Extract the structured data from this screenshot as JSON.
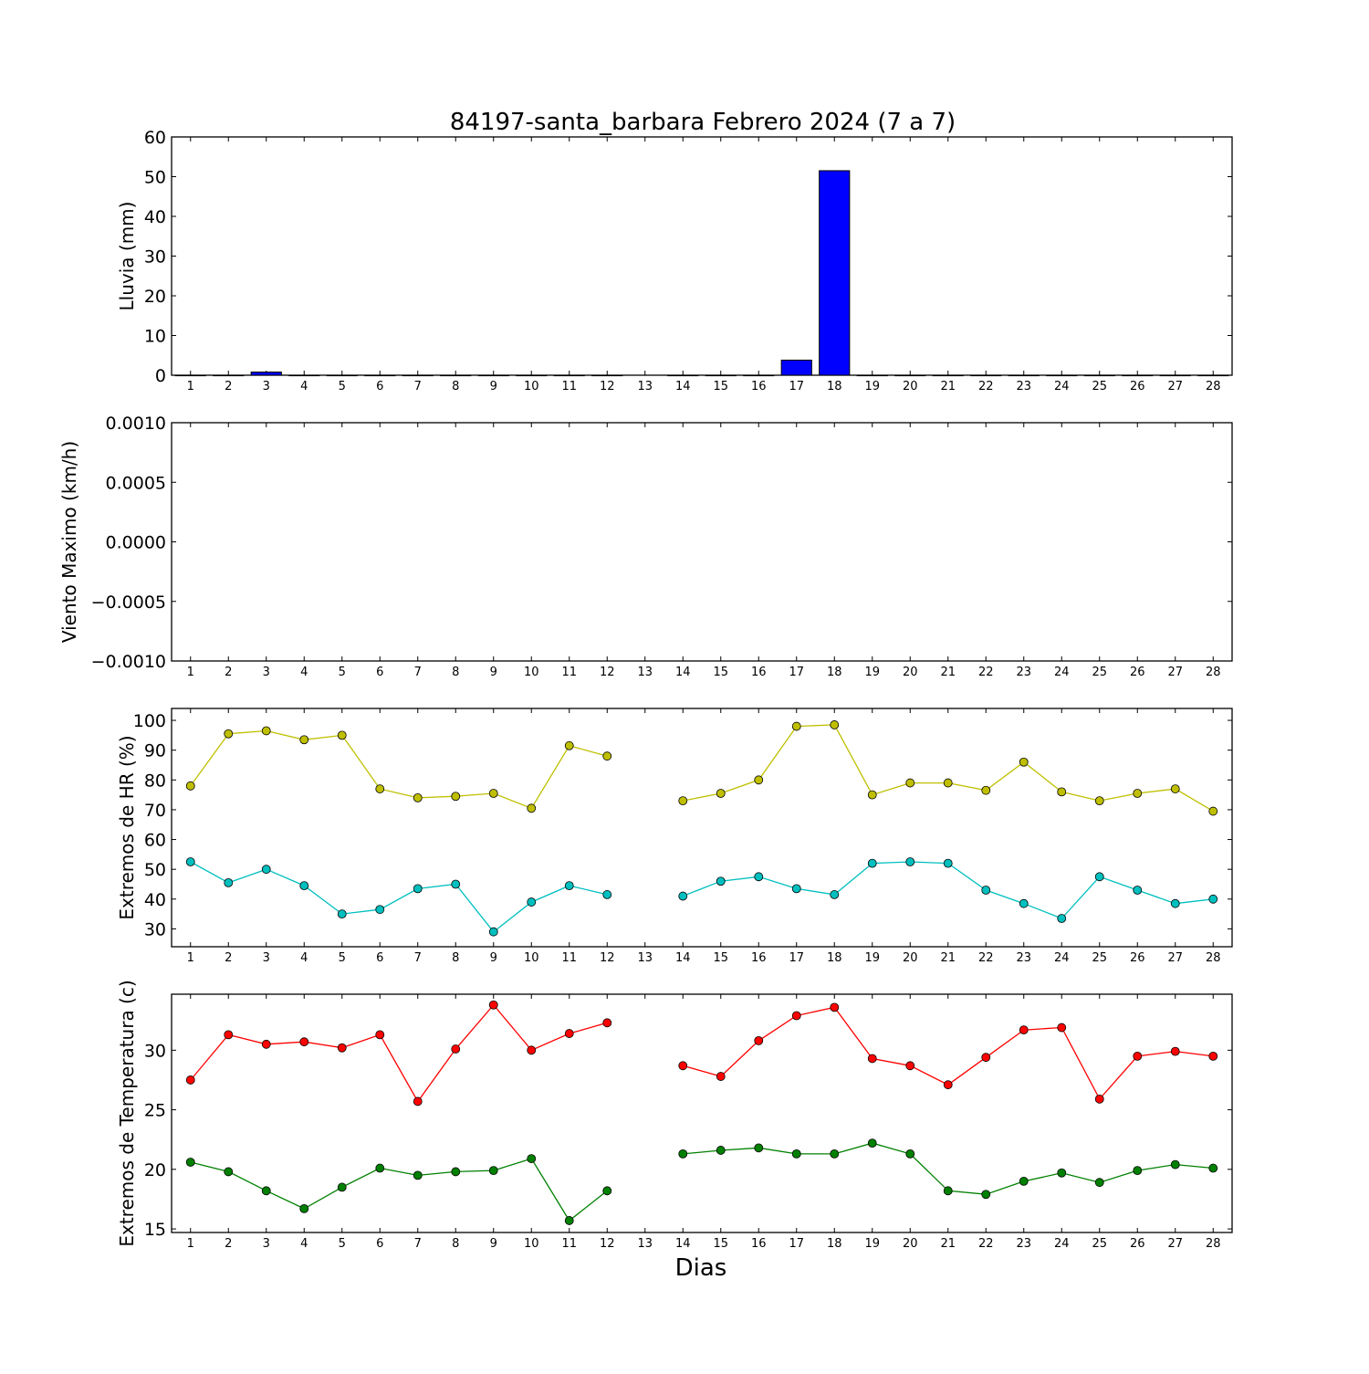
{
  "title": "84197-santa_barbara Febrero 2024  (7 a 7)",
  "xlabel": "Dias",
  "chart_data": [
    {
      "type": "bar",
      "name": "rain",
      "ylabel": "Lluvia (mm)",
      "ylim": [
        0,
        60
      ],
      "yticks": [
        0,
        10,
        20,
        30,
        40,
        50,
        60
      ],
      "ytick_labels": [
        "0",
        "10",
        "20",
        "30",
        "40",
        "50",
        "60"
      ],
      "categories": [
        "1",
        "2",
        "3",
        "4",
        "5",
        "6",
        "7",
        "8",
        "9",
        "10",
        "11",
        "12",
        "13",
        "14",
        "15",
        "16",
        "17",
        "18",
        "19",
        "20",
        "21",
        "22",
        "23",
        "24",
        "25",
        "26",
        "27",
        "28"
      ],
      "color": "#0000ff",
      "values": [
        0,
        0,
        0.8,
        0,
        0,
        0,
        0,
        0,
        0,
        0,
        0,
        0,
        null,
        0,
        0,
        0,
        3.8,
        51.5,
        0,
        0,
        0,
        0,
        0,
        0,
        0,
        0,
        0,
        0
      ]
    },
    {
      "type": "line",
      "name": "wind",
      "ylabel": "Viento Maximo (km/h)",
      "ylim": [
        -0.001,
        0.001
      ],
      "yticks": [
        -0.001,
        -0.0005,
        0,
        0.0005,
        0.001
      ],
      "ytick_labels": [
        "−0.0010",
        "−0.0005",
        "0.0000",
        "0.0005",
        "0.0010"
      ],
      "categories": [
        "1",
        "2",
        "3",
        "4",
        "5",
        "6",
        "7",
        "8",
        "9",
        "10",
        "11",
        "12",
        "13",
        "14",
        "15",
        "16",
        "17",
        "18",
        "19",
        "20",
        "21",
        "22",
        "23",
        "24",
        "25",
        "26",
        "27",
        "28"
      ],
      "series": []
    },
    {
      "type": "line",
      "name": "humidity",
      "ylabel": "Extremos de HR (%)",
      "ylim": [
        24,
        104
      ],
      "yticks": [
        30,
        40,
        50,
        60,
        70,
        80,
        90,
        100
      ],
      "ytick_labels": [
        "30",
        "40",
        "50",
        "60",
        "70",
        "80",
        "90",
        "100"
      ],
      "categories": [
        "1",
        "2",
        "3",
        "4",
        "5",
        "6",
        "7",
        "8",
        "9",
        "10",
        "11",
        "12",
        "13",
        "14",
        "15",
        "16",
        "17",
        "18",
        "19",
        "20",
        "21",
        "22",
        "23",
        "24",
        "25",
        "26",
        "27",
        "28"
      ],
      "series": [
        {
          "color": "#bfbf00",
          "values": [
            78,
            95.5,
            96.5,
            93.5,
            95,
            77,
            74,
            74.5,
            75.5,
            70.5,
            91.5,
            88,
            null,
            73,
            75.5,
            80,
            98,
            98.5,
            75,
            79,
            79,
            76.5,
            86,
            76,
            73,
            75.5,
            77,
            69.5
          ]
        },
        {
          "color": "#00bfbf",
          "values": [
            52.5,
            45.5,
            50,
            44.5,
            35,
            36.5,
            43.5,
            45,
            29,
            39,
            44.5,
            41.5,
            null,
            41,
            46,
            47.5,
            43.5,
            41.5,
            52,
            52.5,
            52,
            43,
            38.5,
            33.5,
            47.5,
            43,
            38.5,
            40
          ]
        }
      ]
    },
    {
      "type": "line",
      "name": "temperature",
      "ylabel": "Extremos de Temperatura (c)",
      "ylim": [
        14.7,
        34.7
      ],
      "yticks": [
        15,
        20,
        25,
        30
      ],
      "ytick_labels": [
        "15",
        "20",
        "25",
        "30"
      ],
      "categories": [
        "1",
        "2",
        "3",
        "4",
        "5",
        "6",
        "7",
        "8",
        "9",
        "10",
        "11",
        "12",
        "13",
        "14",
        "15",
        "16",
        "17",
        "18",
        "19",
        "20",
        "21",
        "22",
        "23",
        "24",
        "25",
        "26",
        "27",
        "28"
      ],
      "series": [
        {
          "color": "#ff0000",
          "values": [
            27.5,
            31.3,
            30.5,
            30.7,
            30.2,
            31.3,
            25.7,
            30.1,
            33.8,
            30,
            31.4,
            32.3,
            null,
            28.7,
            27.8,
            30.8,
            32.9,
            33.6,
            29.3,
            28.7,
            27.1,
            29.4,
            31.7,
            31.9,
            25.9,
            29.5,
            29.9,
            29.5
          ]
        },
        {
          "color": "#008000",
          "values": [
            20.6,
            19.8,
            18.2,
            16.7,
            18.5,
            20.1,
            19.5,
            19.8,
            19.9,
            20.9,
            15.7,
            18.2,
            null,
            21.3,
            21.6,
            21.8,
            21.3,
            21.3,
            22.2,
            21.3,
            18.2,
            17.9,
            19,
            19.7,
            18.9,
            19.9,
            20.4,
            20.1
          ]
        }
      ]
    }
  ]
}
